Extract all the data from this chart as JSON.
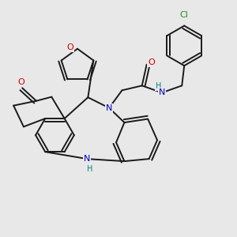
{
  "background_color": "#e8e8e8",
  "atom_colors": {
    "N": "#0000cc",
    "O": "#cc0000",
    "H": "#008080",
    "Cl": "#228B22"
  },
  "bond_color": "#1a1a1a",
  "bond_width": 1.4
}
